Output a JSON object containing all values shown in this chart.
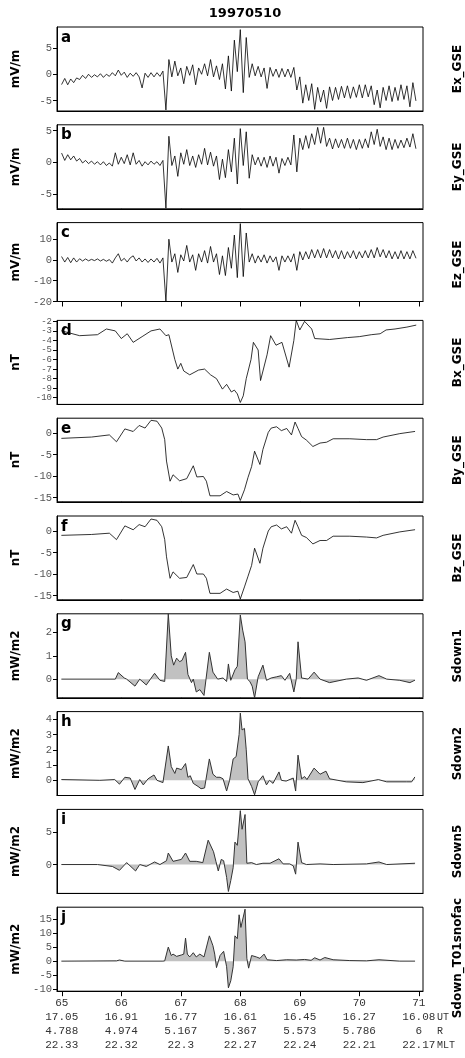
{
  "chart_data": [
    {
      "type": "line",
      "title": "19970510",
      "ylabel": "mV/m",
      "annotations": [
        "a"
      ],
      "tick_labels": "y",
      "xlim": [
        64.92,
        71.07
      ],
      "xticks": [
        65,
        66,
        67,
        68,
        69,
        70,
        71
      ],
      "ylim": [
        -7,
        9
      ],
      "yticks": [
        -5,
        0,
        5
      ],
      "x": [
        65,
        65.05,
        65.1,
        65.15,
        65.2,
        65.25,
        65.3,
        65.35,
        65.4,
        65.45,
        65.5,
        65.55,
        65.6,
        65.65,
        65.7,
        65.75,
        65.8,
        65.85,
        65.9,
        65.95,
        66,
        66.05,
        66.1,
        66.15,
        66.2,
        66.25,
        66.3,
        66.35,
        66.4,
        66.45,
        66.5,
        66.55,
        66.6,
        66.65,
        66.7,
        66.75,
        66.8,
        66.85,
        66.9,
        66.95,
        67,
        67.05,
        67.1,
        67.15,
        67.2,
        67.25,
        67.3,
        67.35,
        67.4,
        67.45,
        67.5,
        67.55,
        67.6,
        67.65,
        67.7,
        67.75,
        67.8,
        67.85,
        67.9,
        67.95,
        68,
        68.05,
        68.1,
        68.15,
        68.2,
        68.25,
        68.3,
        68.35,
        68.4,
        68.45,
        68.5,
        68.55,
        68.6,
        68.65,
        68.7,
        68.75,
        68.8,
        68.85,
        68.9,
        68.95,
        69,
        69.05,
        69.1,
        69.15,
        69.2,
        69.25,
        69.3,
        69.35,
        69.4,
        69.45,
        69.5,
        69.55,
        69.6,
        69.65,
        69.7,
        69.75,
        69.8,
        69.85,
        69.9,
        69.95,
        70,
        70.05,
        70.1,
        70.15,
        70.2,
        70.25,
        70.3,
        70.35,
        70.4,
        70.45,
        70.5,
        70.55,
        70.6,
        70.65,
        70.7,
        70.75,
        70.8,
        70.85,
        70.9,
        70.95
      ],
      "series": [
        {
          "name": "Ex_GSE",
          "color": "#000000",
          "values": [
            -1.9,
            -0.8,
            -2.0,
            -0.9,
            -1.6,
            -0.7,
            -1.0,
            -0.2,
            -0.8,
            0.0,
            -0.6,
            -0.1,
            -0.5,
            0.1,
            -0.6,
            0.0,
            -0.4,
            0.3,
            -0.3,
            0.8,
            -0.2,
            0.4,
            -0.6,
            0.2,
            -0.4,
            0.3,
            -0.5,
            -2.6,
            0.2,
            -0.6,
            0.3,
            -0.5,
            0.3,
            -0.4,
            0.6,
            -6.8,
            2.8,
            -0.5,
            2.5,
            -0.3,
            1.2,
            -1.8,
            1.5,
            -0.2,
            1.8,
            -2.0,
            1.2,
            0.0,
            2.0,
            -0.3,
            2.8,
            -0.5,
            1.6,
            -1.0,
            2.0,
            -2.8,
            3.5,
            -3.2,
            6.5,
            0.5,
            8.5,
            -3.5,
            7.0,
            -0.6,
            2.0,
            -0.3,
            1.5,
            -0.5,
            1.2,
            -2.7,
            1.3,
            -0.4,
            1.0,
            -0.6,
            1.1,
            -0.5,
            1.0,
            -0.6,
            1.3,
            -3.0,
            -0.5,
            -5.5,
            -2.0,
            -5.0,
            -1.8,
            -6.7,
            -2.5,
            -5.3,
            -3.0,
            -6.5,
            -2.4,
            -5.0,
            -2.5,
            -4.8,
            -2.3,
            -4.5,
            -2.2,
            -4.6,
            -2.4,
            -4.4,
            -2.0,
            -4.5,
            -2.0,
            -4.3,
            -2.2,
            -5.8,
            -3.0,
            -6.4,
            -2.5,
            -5.0,
            -2.2,
            -5.2,
            -2.5,
            -5.0,
            -2.0,
            -4.8,
            -2.2,
            -6.2,
            -1.6,
            -5.0
          ]
        }
      ]
    },
    {
      "type": "line",
      "ylabel": "mV/m",
      "annotations": [
        "b"
      ],
      "tick_labels": "y",
      "xlim": [
        64.92,
        71.07
      ],
      "xticks": [
        65,
        66,
        67,
        68,
        69,
        70,
        71
      ],
      "ylim": [
        -7.3,
        5.9
      ],
      "yticks": [
        -5,
        0,
        5
      ],
      "x": [
        65,
        65.05,
        65.1,
        65.15,
        65.2,
        65.25,
        65.3,
        65.35,
        65.4,
        65.45,
        65.5,
        65.55,
        65.6,
        65.65,
        65.7,
        65.75,
        65.8,
        65.85,
        65.9,
        65.95,
        66,
        66.05,
        66.1,
        66.15,
        66.2,
        66.25,
        66.3,
        66.35,
        66.4,
        66.45,
        66.5,
        66.55,
        66.6,
        66.65,
        66.7,
        66.75,
        66.8,
        66.85,
        66.9,
        66.95,
        67,
        67.05,
        67.1,
        67.15,
        67.2,
        67.25,
        67.3,
        67.35,
        67.4,
        67.45,
        67.5,
        67.55,
        67.6,
        67.65,
        67.7,
        67.75,
        67.8,
        67.85,
        67.9,
        67.95,
        68,
        68.05,
        68.1,
        68.15,
        68.2,
        68.25,
        68.3,
        68.35,
        68.4,
        68.45,
        68.5,
        68.55,
        68.6,
        68.65,
        68.7,
        68.75,
        68.8,
        68.85,
        68.9,
        68.95,
        69,
        69.05,
        69.1,
        69.15,
        69.2,
        69.25,
        69.3,
        69.35,
        69.4,
        69.45,
        69.5,
        69.55,
        69.6,
        69.65,
        69.7,
        69.75,
        69.8,
        69.85,
        69.9,
        69.95,
        70,
        70.05,
        70.1,
        70.15,
        70.2,
        70.25,
        70.3,
        70.35,
        70.4,
        70.45,
        70.5,
        70.55,
        70.6,
        70.65,
        70.7,
        70.75,
        70.8,
        70.85,
        70.9,
        70.95
      ],
      "series": [
        {
          "name": "Ey_GSE",
          "color": "#000000",
          "values": [
            1.4,
            0.3,
            1.2,
            0.4,
            1.0,
            0.2,
            0.6,
            -0.1,
            0.3,
            -0.2,
            0.2,
            -0.3,
            0.1,
            -0.4,
            0.1,
            -0.5,
            -0.1,
            -0.6,
            1.5,
            -0.3,
            0.8,
            -0.2,
            1.2,
            -0.4,
            1.5,
            -0.3,
            0.3,
            -0.6,
            0.1,
            -0.4,
            0.2,
            -0.3,
            0.1,
            -0.5,
            0.3,
            -7.2,
            4.1,
            -0.5,
            1.0,
            -2.2,
            1.5,
            -0.3,
            2.0,
            -0.5,
            1.0,
            -0.8,
            1.2,
            -0.3,
            2.2,
            -0.4,
            1.6,
            -0.6,
            1.0,
            -2.7,
            0.5,
            -2.4,
            2.0,
            -1.5,
            3.8,
            -3.4,
            5.3,
            -0.5,
            4.8,
            -2.5,
            1.2,
            -0.4,
            0.8,
            -0.6,
            0.8,
            -0.8,
            1.0,
            -0.6,
            0.8,
            -1.7,
            0.6,
            -0.5,
            0.8,
            -0.4,
            4.3,
            -1.5,
            3.8,
            2.0,
            4.2,
            2.2,
            4.5,
            2.8,
            5.5,
            3.0,
            5.5,
            2.5,
            3.8,
            2.1,
            3.7,
            2.3,
            3.6,
            2.2,
            3.8,
            2.2,
            3.6,
            2.0,
            3.6,
            2.2,
            3.7,
            2.3,
            4.8,
            2.8,
            5.2,
            2.5,
            4.0,
            2.0,
            3.8,
            2.0,
            3.6,
            2.2,
            3.5,
            2.3,
            3.8,
            2.4,
            4.5,
            2.2
          ]
        }
      ]
    },
    {
      "type": "line",
      "ylabel": "mV/m",
      "annotations": [
        "c"
      ],
      "tick_labels": "y",
      "xlim": [
        64.92,
        71.07
      ],
      "xticks": [
        65,
        66,
        67,
        68,
        69,
        70,
        71
      ],
      "ylim": [
        -20,
        18
      ],
      "yticks": [
        -20,
        -10,
        0,
        10
      ],
      "x": [
        65,
        65.05,
        65.1,
        65.15,
        65.2,
        65.25,
        65.3,
        65.35,
        65.4,
        65.45,
        65.5,
        65.55,
        65.6,
        65.65,
        65.7,
        65.75,
        65.8,
        65.85,
        65.9,
        65.95,
        66,
        66.05,
        66.1,
        66.15,
        66.2,
        66.25,
        66.3,
        66.35,
        66.4,
        66.45,
        66.5,
        66.55,
        66.6,
        66.65,
        66.7,
        66.75,
        66.8,
        66.85,
        66.9,
        66.95,
        67,
        67.05,
        67.1,
        67.15,
        67.2,
        67.25,
        67.3,
        67.35,
        67.4,
        67.45,
        67.5,
        67.55,
        67.6,
        67.65,
        67.7,
        67.75,
        67.8,
        67.85,
        67.9,
        67.95,
        68,
        68.05,
        68.1,
        68.15,
        68.2,
        68.25,
        68.3,
        68.35,
        68.4,
        68.45,
        68.5,
        68.55,
        68.6,
        68.65,
        68.7,
        68.75,
        68.8,
        68.85,
        68.9,
        68.95,
        69,
        69.05,
        69.1,
        69.15,
        69.2,
        69.25,
        69.3,
        69.35,
        69.4,
        69.45,
        69.5,
        69.55,
        69.6,
        69.65,
        69.7,
        69.75,
        69.8,
        69.85,
        69.9,
        69.95,
        70,
        70.05,
        70.1,
        70.15,
        70.2,
        70.25,
        70.3,
        70.35,
        70.4,
        70.45,
        70.5,
        70.55,
        70.6,
        70.65,
        70.7,
        70.75,
        70.8,
        70.85,
        70.9,
        70.95
      ],
      "series": [
        {
          "name": "Ez_GSE",
          "color": "#000000",
          "values": [
            1.5,
            -1.0,
            1.2,
            -1.3,
            1.0,
            -1.0,
            0.6,
            -0.5,
            0.5,
            -0.4,
            0.3,
            -0.3,
            0.5,
            -0.5,
            0.3,
            -0.6,
            0.2,
            -1.5,
            1.0,
            3.0,
            -0.5,
            0.8,
            -1.0,
            1.0,
            2.0,
            -0.5,
            1.0,
            -1.0,
            0.5,
            -1.2,
            0.5,
            -1.0,
            0.8,
            -1.5,
            1.0,
            -20.0,
            10.0,
            -1.0,
            3.0,
            -6.0,
            2.5,
            -0.5,
            7.0,
            -1.0,
            2.5,
            -5.0,
            3.0,
            -1.0,
            4.5,
            -1.5,
            6.5,
            -1.0,
            3.0,
            -7.0,
            2.0,
            -7.5,
            6.0,
            -4.0,
            12.0,
            -8.5,
            17.5,
            -8.0,
            13.0,
            -1.0,
            3.0,
            -1.5,
            2.0,
            -1.0,
            2.5,
            -1.5,
            2.0,
            -1.0,
            1.5,
            -5.0,
            2.0,
            -1.0,
            2.0,
            -1.0,
            3.0,
            -5.0,
            4.0,
            0.0,
            4.0,
            0.5,
            5.0,
            1.0,
            5.0,
            1.0,
            5.5,
            1.0,
            5.0,
            1.0,
            4.5,
            0.5,
            4.5,
            0.5,
            4.0,
            1.0,
            4.5,
            0.5,
            4.0,
            1.0,
            4.5,
            1.0,
            5.0,
            1.0,
            6.0,
            1.5,
            5.0,
            1.0,
            4.5,
            0.5,
            4.0,
            0.5,
            4.5,
            0.5,
            4.0,
            0.5,
            4.5,
            1.0
          ]
        }
      ]
    },
    {
      "type": "line",
      "ylabel": "nT",
      "annotations": [
        "d"
      ],
      "tick_labels": "y",
      "xlim": [
        64.92,
        71.07
      ],
      "xticks": [
        65,
        66,
        67,
        68,
        69,
        70,
        71
      ],
      "ylim": [
        -10.7,
        -1.9
      ],
      "yticks": [
        -10,
        -9,
        -8,
        -7,
        -6,
        -5,
        -4,
        -3,
        -2
      ],
      "x": [
        65.0,
        65.3,
        65.6,
        65.75,
        65.9,
        66.0,
        66.1,
        66.2,
        66.35,
        66.5,
        66.65,
        66.75,
        66.8,
        66.9,
        66.95,
        67.0,
        67.05,
        67.15,
        67.3,
        67.4,
        67.5,
        67.6,
        67.7,
        67.77,
        67.85,
        67.9,
        67.95,
        68.0,
        68.05,
        68.1,
        68.18,
        68.22,
        68.3,
        68.34,
        68.45,
        68.51,
        68.6,
        68.7,
        68.82,
        68.9,
        68.94,
        69.0,
        69.08,
        69.2,
        69.25,
        69.5,
        69.8,
        70.0,
        70.2,
        70.35,
        70.45,
        70.6,
        70.8,
        70.95
      ],
      "series": [
        {
          "name": "Bx_GSE",
          "color": "#000000",
          "values": [
            -3.0,
            -3.5,
            -3.4,
            -2.8,
            -3.0,
            -3.8,
            -3.3,
            -4.2,
            -3.6,
            -3.0,
            -2.8,
            -3.5,
            -3.4,
            -6.0,
            -7.0,
            -6.4,
            -7.2,
            -7.6,
            -7.1,
            -7.0,
            -7.6,
            -8.0,
            -9.1,
            -8.6,
            -9.4,
            -9.2,
            -9.6,
            -10.5,
            -9.8,
            -8.0,
            -6.0,
            -4.2,
            -5.0,
            -8.2,
            -5.5,
            -3.5,
            -4.5,
            -4.2,
            -6.8,
            -4.0,
            -1.9,
            -2.9,
            -2.0,
            -2.8,
            -3.8,
            -3.9,
            -3.7,
            -3.6,
            -3.4,
            -3.3,
            -2.9,
            -2.8,
            -2.6,
            -2.4
          ]
        }
      ]
    },
    {
      "type": "line",
      "ylabel": "nT",
      "annotations": [
        "e"
      ],
      "tick_labels": "y",
      "xlim": [
        64.92,
        71.07
      ],
      "xticks": [
        65,
        66,
        67,
        68,
        69,
        70,
        71
      ],
      "ylim": [
        -16,
        3.5
      ],
      "yticks": [
        -15,
        -10,
        -5,
        0
      ],
      "x": [
        65.0,
        65.5,
        65.8,
        65.92,
        66.06,
        66.2,
        66.3,
        66.4,
        66.5,
        66.6,
        66.68,
        66.73,
        66.76,
        66.82,
        66.87,
        66.98,
        67.1,
        67.21,
        67.27,
        67.38,
        67.43,
        67.49,
        67.66,
        67.77,
        67.88,
        67.96,
        68.0,
        68.07,
        68.13,
        68.19,
        68.24,
        68.33,
        68.38,
        68.47,
        68.52,
        68.61,
        68.69,
        68.78,
        68.86,
        68.92,
        68.97,
        69.03,
        69.11,
        69.22,
        69.34,
        69.45,
        69.56,
        69.84,
        70.12,
        70.29,
        70.4,
        70.68,
        70.93
      ],
      "series": [
        {
          "name": "By_GSE",
          "color": "#000000",
          "values": [
            -1.2,
            -0.9,
            -0.4,
            -2.0,
            1.0,
            0.4,
            1.8,
            1.2,
            3.0,
            2.8,
            1.2,
            -1.5,
            -6.5,
            -11.2,
            -9.7,
            -11.1,
            -10.6,
            -7.6,
            -10.2,
            -10.1,
            -11.2,
            -14.6,
            -14.6,
            -13.6,
            -14.4,
            -14.2,
            -15.7,
            -13.2,
            -10.3,
            -7.8,
            -4.2,
            -7.3,
            -3.8,
            0.2,
            1.2,
            1.5,
            0.6,
            1.1,
            -0.4,
            2.6,
            1.1,
            -0.8,
            -1.6,
            -3.1,
            -2.3,
            -2.1,
            -1.3,
            -1.3,
            -1.5,
            -1.5,
            -0.9,
            -0.1,
            0.4
          ]
        }
      ]
    },
    {
      "type": "line",
      "ylabel": "nT",
      "annotations": [
        "f"
      ],
      "tick_labels": "y",
      "xlim": [
        64.92,
        71.07
      ],
      "xticks": [
        65,
        66,
        67,
        68,
        69,
        70,
        71
      ],
      "ylim": [
        -16,
        3.5
      ],
      "yticks": [
        -15,
        -10,
        -5,
        0
      ],
      "x": [
        65.0,
        65.5,
        65.8,
        65.92,
        66.06,
        66.2,
        66.3,
        66.4,
        66.5,
        66.6,
        66.68,
        66.73,
        66.76,
        66.82,
        66.87,
        66.98,
        67.1,
        67.21,
        67.27,
        67.38,
        67.43,
        67.49,
        67.66,
        67.77,
        67.88,
        67.96,
        68.0,
        68.07,
        68.13,
        68.19,
        68.24,
        68.33,
        68.38,
        68.47,
        68.52,
        68.61,
        68.69,
        68.78,
        68.86,
        68.92,
        68.97,
        69.03,
        69.11,
        69.22,
        69.34,
        69.45,
        69.56,
        69.84,
        70.12,
        70.29,
        70.4,
        70.68,
        70.93
      ],
      "series": [
        {
          "name": "Bz_GSE",
          "color": "#000000",
          "values": [
            -1.0,
            -0.8,
            -0.5,
            -2.0,
            1.2,
            0.3,
            1.5,
            1.0,
            2.8,
            2.5,
            1.0,
            -2.0,
            -6.0,
            -11.0,
            -9.5,
            -11.0,
            -10.8,
            -7.8,
            -10.0,
            -10.0,
            -11.0,
            -14.5,
            -14.5,
            -13.5,
            -14.3,
            -14.0,
            -15.8,
            -13.0,
            -10.5,
            -8.0,
            -4.0,
            -7.5,
            -4.0,
            0.0,
            1.0,
            1.4,
            0.5,
            1.0,
            -0.5,
            2.5,
            1.0,
            -1.0,
            -1.5,
            -3.0,
            -2.2,
            -2.2,
            -1.2,
            -1.2,
            -1.4,
            -1.6,
            -1.0,
            -0.2,
            0.3
          ]
        }
      ]
    },
    {
      "type": "area",
      "ylabel": "mW/m2",
      "annotations": [
        "g"
      ],
      "tick_labels": "y",
      "xlim": [
        64.92,
        71.07
      ],
      "xticks": [
        65,
        66,
        67,
        68,
        69,
        70,
        71
      ],
      "ylim": [
        -0.8,
        2.8
      ],
      "yticks": [
        0,
        1,
        2
      ],
      "x": [
        65.0,
        65.9,
        65.95,
        66.05,
        66.09,
        66.23,
        66.31,
        66.42,
        66.56,
        66.65,
        66.73,
        66.79,
        66.84,
        66.88,
        66.93,
        66.98,
        67.02,
        67.08,
        67.12,
        67.18,
        67.21,
        67.26,
        67.32,
        67.39,
        67.48,
        67.54,
        67.62,
        67.71,
        67.77,
        67.8,
        67.84,
        67.91,
        67.95,
        68.0,
        68.04,
        68.08,
        68.12,
        68.16,
        68.2,
        68.24,
        68.3,
        68.38,
        68.44,
        68.52,
        68.61,
        68.69,
        68.75,
        68.83,
        68.9,
        68.94,
        68.97,
        69.03,
        69.14,
        69.24,
        69.34,
        69.5,
        69.78,
        69.98,
        70.12,
        70.33,
        70.46,
        70.68,
        70.85,
        70.93
      ],
      "series": [
        {
          "name": "Sdown1",
          "color": "#333333",
          "values": [
            0.0,
            0.0,
            0.28,
            0.05,
            0.0,
            -0.3,
            0.0,
            -0.25,
            0.25,
            -0.05,
            -0.1,
            2.8,
            1.0,
            0.6,
            0.9,
            0.75,
            0.8,
            1.15,
            0.2,
            -0.15,
            0.0,
            -0.55,
            -0.45,
            -0.7,
            1.15,
            0.3,
            0.0,
            0.05,
            -0.1,
            0.65,
            -0.05,
            0.4,
            0.55,
            2.75,
            2.1,
            1.6,
            0.0,
            -0.1,
            -0.3,
            -0.8,
            0.1,
            0.6,
            -0.05,
            0.05,
            0.1,
            0.15,
            -0.05,
            0.25,
            -0.55,
            0.0,
            1.6,
            0.05,
            0.0,
            0.3,
            0.0,
            -0.15,
            0.0,
            0.05,
            -0.05,
            0.15,
            0.0,
            -0.05,
            -0.15,
            -0.05
          ]
        }
      ]
    },
    {
      "type": "area",
      "ylabel": "mW/m2",
      "annotations": [
        "h"
      ],
      "tick_labels": "y",
      "xlim": [
        64.92,
        71.07
      ],
      "xticks": [
        65,
        66,
        67,
        68,
        69,
        70,
        71
      ],
      "ylim": [
        -1,
        4.5
      ],
      "yticks": [
        0,
        1,
        2,
        3,
        4
      ],
      "x": [
        65.0,
        65.64,
        65.89,
        65.97,
        66.06,
        66.15,
        66.23,
        66.31,
        66.37,
        66.45,
        66.55,
        66.6,
        66.7,
        66.79,
        66.84,
        66.9,
        66.93,
        67.01,
        67.08,
        67.12,
        67.16,
        67.21,
        67.29,
        67.34,
        67.4,
        67.48,
        67.54,
        67.6,
        67.66,
        67.71,
        67.77,
        67.82,
        67.88,
        67.93,
        67.98,
        68.0,
        68.03,
        68.07,
        68.1,
        68.13,
        68.19,
        68.24,
        68.3,
        68.38,
        68.44,
        68.49,
        68.55,
        68.65,
        68.69,
        68.77,
        68.89,
        68.93,
        68.97,
        69.03,
        69.08,
        69.12,
        69.24,
        69.34,
        69.44,
        69.5,
        69.78,
        70.06,
        70.32,
        70.46,
        70.79,
        70.88,
        70.93
      ],
      "series": [
        {
          "name": "Sdown2",
          "color": "#333333",
          "values": [
            0.05,
            0.0,
            0.05,
            -0.25,
            0.2,
            0.15,
            -0.6,
            0.05,
            -0.3,
            0.1,
            0.35,
            0.0,
            -0.15,
            2.25,
            0.9,
            0.45,
            0.8,
            0.7,
            1.1,
            0.2,
            0.3,
            -0.2,
            -0.4,
            -0.55,
            -0.5,
            1.4,
            0.4,
            0.2,
            0.2,
            0.1,
            -0.7,
            0.0,
            1.4,
            1.55,
            3.0,
            4.4,
            3.3,
            3.4,
            2.0,
            0.1,
            -0.4,
            -0.95,
            -0.1,
            0.3,
            -0.3,
            0.0,
            -0.2,
            0.55,
            0.0,
            -0.05,
            0.15,
            -0.7,
            1.65,
            0.1,
            0.25,
            0.05,
            0.8,
            0.4,
            0.6,
            0.1,
            -0.1,
            -0.15,
            0.05,
            -0.1,
            -0.1,
            -0.1,
            0.2
          ]
        }
      ]
    },
    {
      "type": "area",
      "ylabel": "mW/m2",
      "annotations": [
        "i"
      ],
      "tick_labels": "y",
      "xlim": [
        64.92,
        71.07
      ],
      "xticks": [
        65,
        66,
        67,
        68,
        69,
        70,
        71
      ],
      "ylim": [
        -4.5,
        8.6
      ],
      "yticks": [
        0,
        5
      ],
      "x": [
        65.0,
        65.6,
        65.85,
        65.97,
        66.09,
        66.24,
        66.31,
        66.42,
        66.56,
        66.65,
        66.76,
        66.79,
        66.87,
        67.01,
        67.08,
        67.15,
        67.26,
        67.37,
        67.46,
        67.55,
        67.59,
        67.63,
        67.68,
        67.72,
        67.77,
        67.8,
        67.84,
        67.88,
        67.91,
        67.95,
        68.0,
        68.03,
        68.08,
        68.11,
        68.19,
        68.27,
        68.38,
        68.5,
        68.65,
        68.72,
        68.83,
        68.89,
        68.93,
        68.97,
        69.03,
        69.11,
        69.34,
        69.56,
        70.12,
        70.33,
        70.46,
        70.93
      ],
      "series": [
        {
          "name": "Sdown5",
          "color": "#333333",
          "values": [
            0.0,
            0.0,
            -0.3,
            -0.9,
            0.3,
            -1.0,
            0.0,
            -0.3,
            0.4,
            0.0,
            0.6,
            1.8,
            0.5,
            0.8,
            1.8,
            0.5,
            0.5,
            0.3,
            3.8,
            2.0,
            0.5,
            -1.0,
            0.8,
            0.6,
            -2.0,
            -4.2,
            -2.5,
            -0.5,
            3.5,
            3.0,
            8.4,
            5.5,
            7.8,
            0.2,
            0.3,
            0.0,
            0.2,
            0.2,
            0.9,
            0.1,
            0.1,
            -0.2,
            -1.5,
            3.5,
            0.3,
            0.0,
            0.1,
            0.0,
            0.1,
            0.4,
            0.0,
            0.2
          ]
        }
      ]
    },
    {
      "type": "area",
      "ylabel": "mW/m2",
      "xlim": [
        64.92,
        71.07
      ],
      "xticks": [
        65,
        66,
        67,
        68,
        69,
        70,
        71
      ],
      "annotations": [
        "j",
        "UT\nR\nMLT",
        "17.05\n4.788\n22.33",
        "16.91\n4.974\n22.32",
        "16.77\n5.167\n22.3",
        "16.61\n5.367\n22.27",
        "16.45\n5.573\n22.24",
        "16.27\n5.786\n22.21",
        "16.08\n6\n22.17"
      ],
      "ylim": [
        -10.7,
        19.2
      ],
      "yticks": [
        -10,
        -5,
        0,
        5,
        10,
        15
      ],
      "x": [
        65.0,
        65.92,
        65.97,
        66.06,
        66.7,
        66.73,
        66.79,
        66.84,
        66.87,
        66.93,
        67.01,
        67.05,
        67.08,
        67.11,
        67.15,
        67.21,
        67.26,
        67.32,
        67.39,
        67.48,
        67.54,
        67.57,
        67.6,
        67.66,
        67.72,
        67.77,
        67.8,
        67.84,
        67.88,
        67.91,
        67.95,
        67.98,
        68.01,
        68.08,
        68.11,
        68.14,
        68.19,
        68.27,
        68.33,
        68.4,
        68.45,
        68.61,
        68.78,
        68.94,
        69.08,
        69.19,
        69.25,
        69.34,
        69.42,
        69.56,
        69.84,
        70.12,
        70.33,
        70.68,
        70.93
      ],
      "series": [
        {
          "name": "Sdown_T01snofac",
          "color": "#333333",
          "values": [
            0.0,
            0.1,
            0.4,
            0.0,
            0.0,
            0.1,
            5.0,
            2.0,
            2.5,
            1.7,
            2.2,
            2.5,
            8.2,
            2.5,
            1.5,
            3.0,
            1.5,
            2.5,
            1.5,
            9.0,
            5.5,
            2.5,
            -2.3,
            2.0,
            3.5,
            -2.0,
            -9.5,
            -7.0,
            -2.0,
            9.0,
            8.0,
            16.5,
            12.0,
            18.5,
            1.0,
            -2.5,
            2.0,
            1.5,
            1.0,
            2.5,
            0.5,
            0.2,
            0.5,
            0.4,
            0.6,
            0.3,
            1.2,
            0.4,
            1.3,
            0.5,
            0.2,
            0.1,
            0.5,
            0.0,
            0.0
          ]
        }
      ]
    }
  ]
}
